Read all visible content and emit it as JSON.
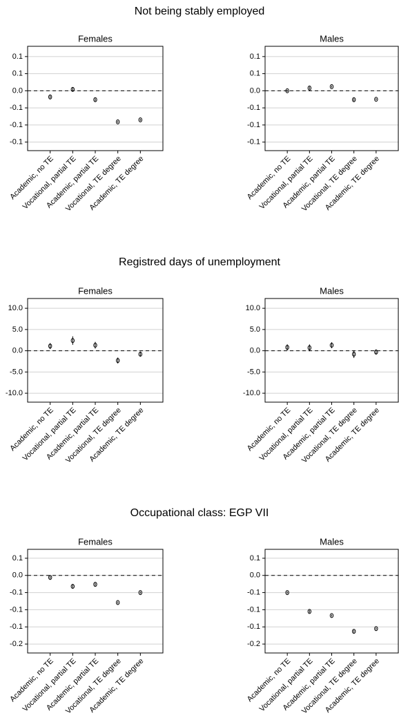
{
  "figure_titles": [
    "Not being stably employed",
    "Registred days of unemployment",
    "Occupational class: EGP VII"
  ],
  "chart_data": [
    {
      "type": "errorbar",
      "title": "Females",
      "categories": [
        "Academic, no TE",
        "Vocational, partial TE",
        "Academic, partial TE",
        "Vocational, TE degree",
        "Academic, TE degree"
      ],
      "values": [
        -0.018,
        0.004,
        -0.026,
        -0.091,
        -0.085
      ],
      "errors": [
        0.004,
        0.005,
        0.004,
        0.003,
        0.003
      ],
      "ylim": [
        -0.175,
        0.13
      ],
      "yticks": [
        {
          "value": 0.1,
          "label": "0.1"
        },
        {
          "value": 0.05,
          "label": "0.1"
        },
        {
          "value": 0,
          "label": "0.0"
        },
        {
          "value": -0.05,
          "label": "-0.1"
        },
        {
          "value": -0.1,
          "label": "-0.1"
        },
        {
          "value": -0.15,
          "label": "-0.1"
        }
      ],
      "grid": true,
      "hline": 0,
      "color": "#000000"
    },
    {
      "type": "errorbar",
      "title": "Males",
      "categories": [
        "Academic, no TE",
        "Vocational, partial TE",
        "Academic, partial TE",
        "Vocational, TE degree",
        "Academic, TE degree"
      ],
      "values": [
        0.0,
        0.008,
        0.012,
        -0.026,
        -0.025
      ],
      "errors": [
        0.003,
        0.004,
        0.003,
        0.004,
        0.003
      ],
      "ylim": [
        -0.175,
        0.13
      ],
      "yticks": [
        {
          "value": 0.1,
          "label": "0.1"
        },
        {
          "value": 0.05,
          "label": "0.1"
        },
        {
          "value": 0,
          "label": "0.0"
        },
        {
          "value": -0.05,
          "label": "-0.1"
        },
        {
          "value": -0.1,
          "label": "-0.1"
        },
        {
          "value": -0.15,
          "label": "-0.1"
        }
      ],
      "grid": true,
      "hline": 0,
      "color": "#000000"
    },
    {
      "type": "errorbar",
      "title": "Females",
      "categories": [
        "Academic, no TE",
        "Vocational, partial TE",
        "Academic, partial TE",
        "Vocational, TE degree",
        "Academic, TE degree"
      ],
      "values": [
        1.1,
        2.4,
        1.3,
        -2.3,
        -0.8
      ],
      "errors": [
        0.7,
        1.0,
        0.8,
        0.7,
        0.6
      ],
      "ylim": [
        -12.1,
        12.3
      ],
      "yticks": [
        {
          "value": 10,
          "label": "10.0"
        },
        {
          "value": 5,
          "label": "5.0"
        },
        {
          "value": 0,
          "label": "0.0"
        },
        {
          "value": -5,
          "label": "-5.0"
        },
        {
          "value": -10,
          "label": "-10.0"
        }
      ],
      "grid": true,
      "hline": 0,
      "color": "#000000"
    },
    {
      "type": "errorbar",
      "title": "Males",
      "categories": [
        "Academic, no TE",
        "Vocational, partial TE",
        "Academic, partial TE",
        "Vocational, TE degree",
        "Academic, TE degree"
      ],
      "values": [
        0.8,
        0.7,
        1.3,
        -0.8,
        -0.3
      ],
      "errors": [
        0.7,
        0.8,
        0.7,
        0.9,
        0.6
      ],
      "ylim": [
        -12.1,
        12.3
      ],
      "yticks": [
        {
          "value": 10,
          "label": "10.0"
        },
        {
          "value": 5,
          "label": "5.0"
        },
        {
          "value": 0,
          "label": "0.0"
        },
        {
          "value": -5,
          "label": "-5.0"
        },
        {
          "value": -10,
          "label": "-10.0"
        }
      ],
      "grid": true,
      "hline": 0,
      "color": "#000000"
    },
    {
      "type": "errorbar",
      "title": "Females",
      "categories": [
        "Academic, no TE",
        "Vocational, partial TE",
        "Academic, partial TE",
        "Vocational, TE degree",
        "Academic, TE degree"
      ],
      "values": [
        -0.006,
        -0.032,
        -0.026,
        -0.079,
        -0.05
      ],
      "errors": [
        0.004,
        0.005,
        0.004,
        0.003,
        0.003
      ],
      "ylim": [
        -0.226,
        0.076
      ],
      "yticks": [
        {
          "value": 0.05,
          "label": "0.1"
        },
        {
          "value": 0,
          "label": "0.0"
        },
        {
          "value": -0.05,
          "label": "-0.1"
        },
        {
          "value": -0.1,
          "label": "-0.1"
        },
        {
          "value": -0.15,
          "label": "-0.1"
        },
        {
          "value": -0.2,
          "label": "-0.2"
        }
      ],
      "grid": true,
      "hline": 0,
      "color": "#000000"
    },
    {
      "type": "errorbar",
      "title": "Males",
      "categories": [
        "Academic, no TE",
        "Vocational, partial TE",
        "Academic, partial TE",
        "Vocational, TE degree",
        "Academic, TE degree"
      ],
      "values": [
        -0.05,
        -0.105,
        -0.117,
        -0.163,
        -0.155
      ],
      "errors": [
        0.003,
        0.004,
        0.003,
        0.004,
        0.003
      ],
      "ylim": [
        -0.226,
        0.076
      ],
      "yticks": [
        {
          "value": 0.05,
          "label": "0.1"
        },
        {
          "value": 0,
          "label": "0.0"
        },
        {
          "value": -0.05,
          "label": "-0.1"
        },
        {
          "value": -0.1,
          "label": "-0.1"
        },
        {
          "value": -0.15,
          "label": "-0.1"
        },
        {
          "value": -0.2,
          "label": "-0.2"
        }
      ],
      "grid": true,
      "hline": 0,
      "color": "#000000"
    }
  ]
}
